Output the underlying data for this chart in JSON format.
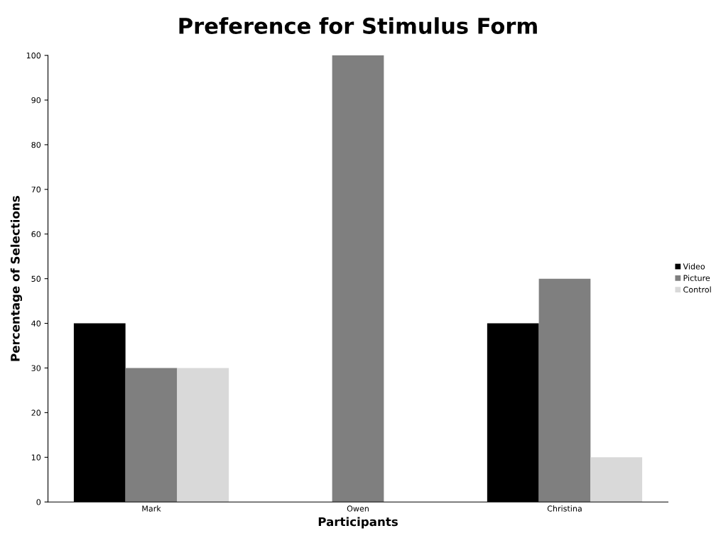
{
  "chart_data": {
    "type": "bar",
    "title": "Preference for Stimulus Form",
    "xlabel": "Participants",
    "ylabel": "Percentage of Selections",
    "categories": [
      "Mark",
      "Owen",
      "Christina"
    ],
    "series": [
      {
        "name": "Video",
        "color": "#000000",
        "values": [
          40,
          0,
          40
        ]
      },
      {
        "name": "Picture",
        "color": "#7f7f7f",
        "values": [
          30,
          100,
          50
        ]
      },
      {
        "name": "Control",
        "color": "#d9d9d9",
        "values": [
          30,
          0,
          10
        ]
      }
    ],
    "ylim": [
      0,
      100
    ],
    "yticks": [
      0,
      10,
      20,
      30,
      40,
      50,
      60,
      70,
      80,
      90,
      100
    ],
    "grid": false,
    "legend": "right"
  }
}
